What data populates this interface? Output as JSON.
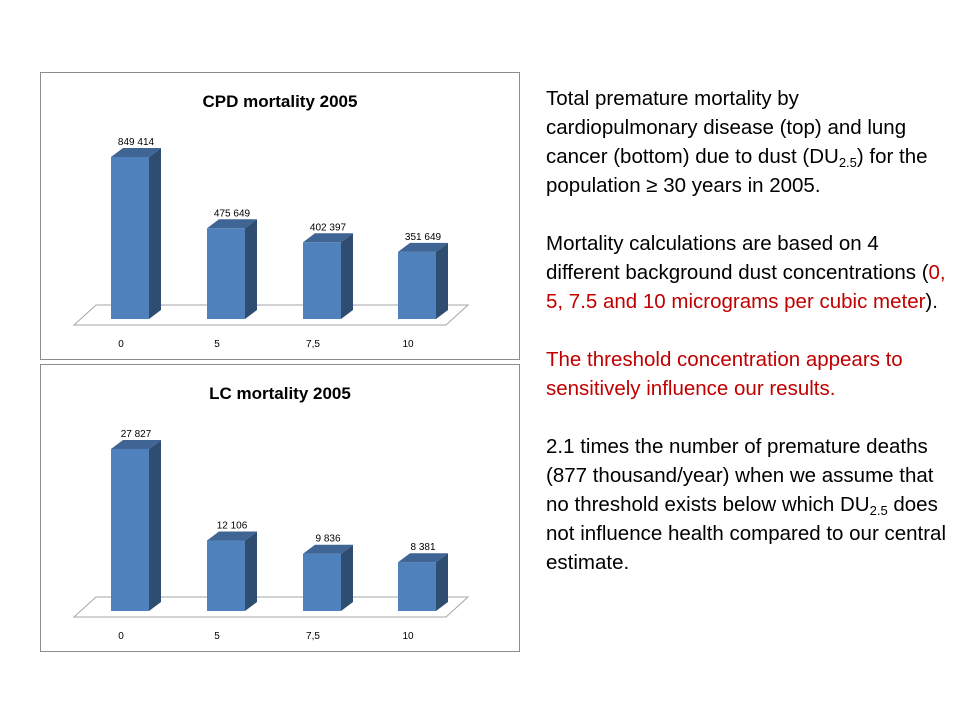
{
  "chart_data": [
    {
      "type": "bar",
      "title": "CPD mortality 2005",
      "categories": [
        "0",
        "5",
        "7,5",
        "10"
      ],
      "values": [
        849414,
        475649,
        402397,
        351649
      ],
      "value_labels": [
        "849 414",
        "475 649",
        "402 397",
        "351 649"
      ],
      "color": "#4f81bd",
      "grid": false,
      "legend": "none"
    },
    {
      "type": "bar",
      "title": "LC mortality 2005",
      "categories": [
        "0",
        "5",
        "7,5",
        "10"
      ],
      "values": [
        27827,
        12106,
        9836,
        8381
      ],
      "value_labels": [
        "27 827",
        "12 106",
        "9 836",
        "8 381"
      ],
      "color": "#4f81bd",
      "grid": false,
      "legend": "none"
    }
  ],
  "text": {
    "p1_a": "Total premature mortality by cardiopulmonary disease (top) and lung cancer (bottom) due to dust (DU",
    "p1_sub": "2.5",
    "p1_b": ") for the population ≥ 30 years in 2005.",
    "p2_a": "Mortality calculations are based on 4 different background dust concentrations (",
    "p2_red": "0, 5, 7.5 and 10 micrograms per cubic meter",
    "p2_b": ").",
    "p3": "The threshold concentration appears to sensitively influence our results.",
    "p4_a": "2.1 times the number of premature deaths (877 thousand/year) when we assume that no threshold exists below which DU",
    "p4_sub": "2.5",
    "p4_b": " does not influence health compared to our central estimate."
  }
}
